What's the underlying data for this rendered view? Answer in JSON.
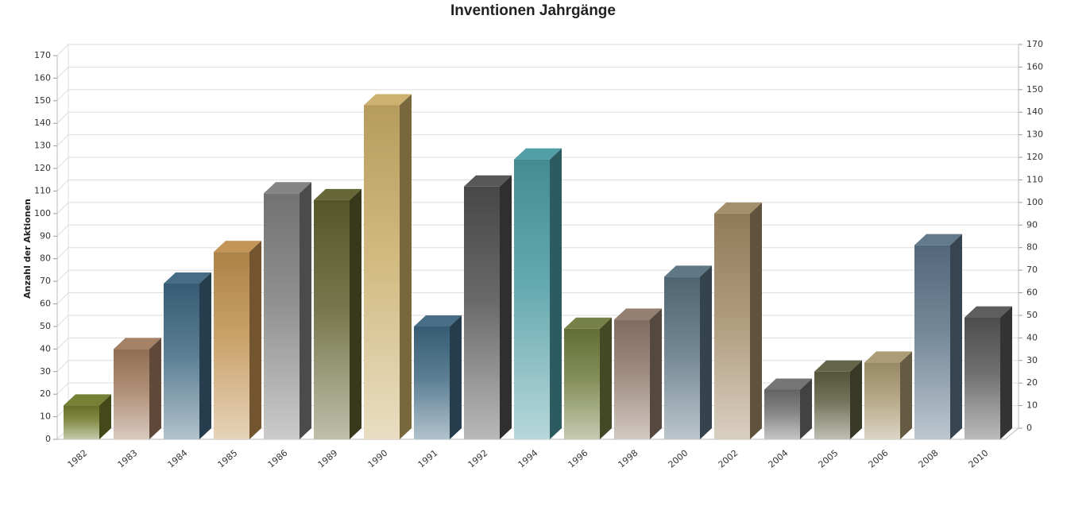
{
  "chart_data": {
    "type": "bar3d",
    "title": "Inventionen Jahrgänge",
    "y_label": "Anzahl der Aktionen",
    "categories": [
      "1982",
      "1983",
      "1984",
      "1985",
      "1986",
      "1989",
      "1990",
      "1991",
      "1992",
      "1994",
      "1996",
      "1998",
      "2000",
      "2002",
      "2004",
      "2005",
      "2006",
      "2008",
      "2010"
    ],
    "values": [
      15,
      40,
      69,
      83,
      109,
      106,
      148,
      50,
      112,
      124,
      49,
      53,
      72,
      100,
      22,
      30,
      34,
      86,
      54
    ],
    "colors": [
      "#6f7a2a",
      "#a07a5e",
      "#3d6680",
      "#c0904f",
      "#7d7d7d",
      "#5e5f2c",
      "#c9ad68",
      "#3d6680",
      "#4f4f4f",
      "#4a9aa2",
      "#6e7a3c",
      "#8e7868",
      "#58707f",
      "#a08864",
      "#6e6e6e",
      "#5d5d40",
      "#a89770",
      "#5b7387",
      "#555555"
    ],
    "ylim": [
      0,
      170
    ],
    "yticks": [
      0,
      10,
      20,
      30,
      40,
      50,
      60,
      70,
      80,
      90,
      100,
      110,
      120,
      130,
      140,
      150,
      160,
      170
    ],
    "grid": true
  }
}
